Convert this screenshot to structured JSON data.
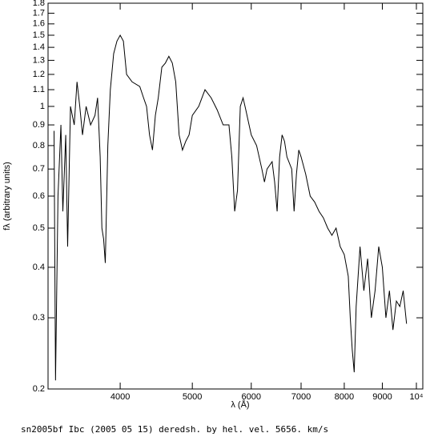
{
  "chart_data": {
    "type": "line",
    "xlabel": "λ (Å)",
    "ylabel": "fλ (arbitrary units)",
    "caption": "sn2005bf Ibc (2005 05 15) deredsh. by hel. vel.  5656. km/s",
    "xscale": "log",
    "yscale": "log",
    "color": "#000000",
    "xlim": [
      3200,
      10200
    ],
    "ylim": [
      0.2,
      1.8
    ],
    "xticks": [
      4000,
      5000,
      6000,
      7000,
      8000,
      9000,
      {
        "value": 10000,
        "label": "10⁴"
      }
    ],
    "yticks": [
      0.2,
      0.3,
      0.4,
      0.5,
      0.6,
      0.7,
      0.8,
      0.9,
      1,
      1.1,
      1.2,
      1.3,
      1.4,
      1.5,
      1.6,
      1.7,
      1.8
    ],
    "x": [
      3260,
      3275,
      3300,
      3330,
      3350,
      3380,
      3400,
      3430,
      3470,
      3500,
      3530,
      3560,
      3600,
      3650,
      3700,
      3730,
      3760,
      3780,
      3800,
      3820,
      3850,
      3880,
      3920,
      3960,
      4000,
      4040,
      4080,
      4150,
      4250,
      4300,
      4340,
      4380,
      4420,
      4460,
      4500,
      4550,
      4600,
      4650,
      4700,
      4750,
      4800,
      4850,
      4900,
      4950,
      5000,
      5100,
      5200,
      5300,
      5400,
      5500,
      5600,
      5650,
      5700,
      5750,
      5800,
      5850,
      5900,
      6000,
      6100,
      6200,
      6250,
      6300,
      6400,
      6450,
      6500,
      6550,
      6600,
      6650,
      6700,
      6800,
      6850,
      6900,
      6950,
      7000,
      7100,
      7200,
      7300,
      7400,
      7500,
      7600,
      7700,
      7800,
      7900,
      8000,
      8100,
      8150,
      8200,
      8250,
      8300,
      8400,
      8500,
      8600,
      8700,
      8800,
      8900,
      9000,
      9100,
      9200,
      9300,
      9400,
      9500,
      9600,
      9700
    ],
    "values": [
      0.87,
      0.21,
      0.6,
      0.9,
      0.55,
      0.85,
      0.45,
      1.0,
      0.9,
      1.15,
      1.0,
      0.85,
      1.0,
      0.9,
      0.95,
      1.05,
      0.75,
      0.5,
      0.47,
      0.41,
      0.8,
      1.1,
      1.35,
      1.45,
      1.5,
      1.45,
      1.2,
      1.15,
      1.12,
      1.05,
      1.0,
      0.85,
      0.78,
      0.95,
      1.05,
      1.25,
      1.28,
      1.33,
      1.28,
      1.15,
      0.85,
      0.78,
      0.82,
      0.85,
      0.95,
      1.0,
      1.1,
      1.05,
      0.98,
      0.9,
      0.9,
      0.75,
      0.55,
      0.62,
      1.0,
      1.05,
      0.98,
      0.85,
      0.8,
      0.7,
      0.65,
      0.7,
      0.73,
      0.65,
      0.55,
      0.75,
      0.85,
      0.82,
      0.75,
      0.7,
      0.55,
      0.68,
      0.78,
      0.75,
      0.68,
      0.6,
      0.58,
      0.55,
      0.53,
      0.5,
      0.48,
      0.5,
      0.45,
      0.43,
      0.38,
      0.3,
      0.25,
      0.22,
      0.32,
      0.45,
      0.35,
      0.42,
      0.3,
      0.35,
      0.45,
      0.4,
      0.3,
      0.35,
      0.28,
      0.33,
      0.32,
      0.35,
      0.29
    ]
  }
}
